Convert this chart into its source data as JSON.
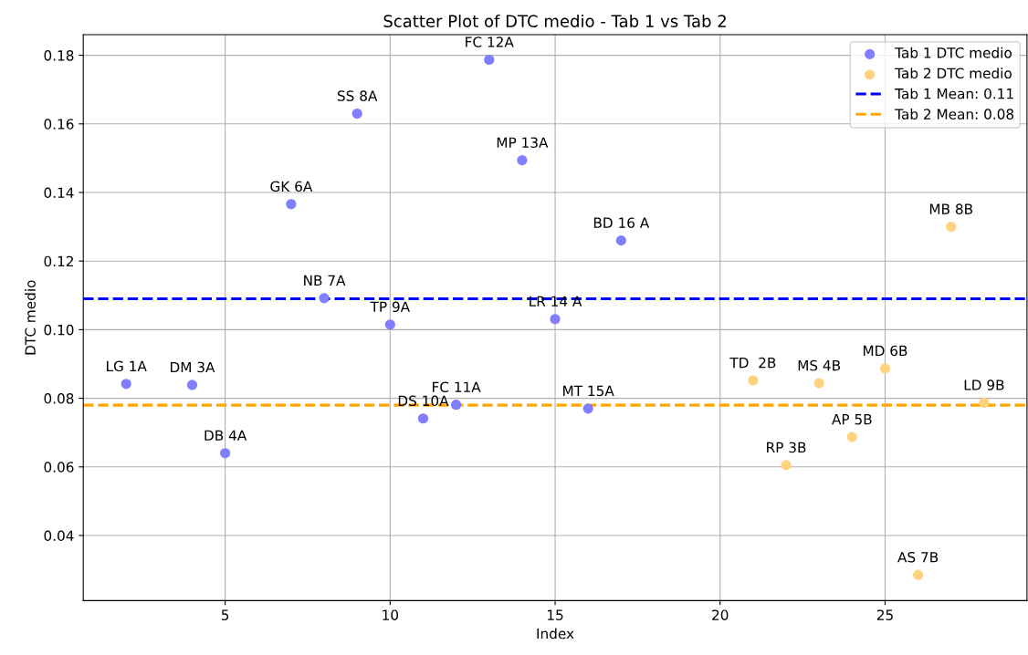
{
  "chart_data": {
    "type": "scatter",
    "title": "Scatter Plot of DTC medio - Tab 1 vs Tab 2",
    "xlabel": "Index",
    "ylabel": "DTC medio",
    "series": [
      {
        "name": "Tab 1 DTC medio",
        "color": "#7f7fff",
        "x": [
          2,
          4,
          5,
          7,
          8,
          9,
          10,
          11,
          12,
          13,
          14,
          15,
          16,
          17
        ],
        "values": [
          0.0842,
          0.0839,
          0.064,
          0.1366,
          0.1092,
          0.163,
          0.1015,
          0.0741,
          0.0781,
          0.1787,
          0.1494,
          0.1031,
          0.077,
          0.126
        ]
      },
      {
        "name": "Tab 2 DTC medio",
        "color": "#ffd27f",
        "x": [
          21,
          22,
          23,
          24,
          25,
          26,
          27,
          28
        ],
        "values": [
          0.0852,
          0.0605,
          0.0844,
          0.0687,
          0.0887,
          0.0285,
          0.13,
          0.0787
        ]
      }
    ],
    "ref_lines": [
      {
        "axis": "y",
        "value": 0.109,
        "label": "Tab 1 Mean: 0.11",
        "color": "#0000ff",
        "line_style": "dashed"
      },
      {
        "axis": "y",
        "value": 0.078,
        "label": "Tab 2 Mean: 0.08",
        "color": "#ffa500",
        "line_style": "dashed"
      }
    ],
    "annotations": [
      {
        "text": "LG 1A",
        "x": 2,
        "y": 0.0842
      },
      {
        "text": "DM 3A",
        "x": 4,
        "y": 0.0839
      },
      {
        "text": "DB 4A",
        "x": 5,
        "y": 0.064
      },
      {
        "text": "GK 6A",
        "x": 7,
        "y": 0.1366
      },
      {
        "text": "NB 7A",
        "x": 8,
        "y": 0.1092
      },
      {
        "text": "SS 8A",
        "x": 9,
        "y": 0.163
      },
      {
        "text": "TP 9A",
        "x": 10,
        "y": 0.1015
      },
      {
        "text": "DS 10A",
        "x": 11,
        "y": 0.0741
      },
      {
        "text": "FC 11A",
        "x": 12,
        "y": 0.0781
      },
      {
        "text": "FC 12A",
        "x": 13,
        "y": 0.1787
      },
      {
        "text": "MP 13A",
        "x": 14,
        "y": 0.1494
      },
      {
        "text": "LR 14 A",
        "x": 15,
        "y": 0.1031
      },
      {
        "text": "MT 15A",
        "x": 16,
        "y": 0.077
      },
      {
        "text": "BD 16 A",
        "x": 17,
        "y": 0.126
      },
      {
        "text": "TD  2B",
        "x": 21,
        "y": 0.0852
      },
      {
        "text": "RP 3B",
        "x": 22,
        "y": 0.0605
      },
      {
        "text": "MS 4B",
        "x": 23,
        "y": 0.0844
      },
      {
        "text": "AP 5B",
        "x": 24,
        "y": 0.0687
      },
      {
        "text": "MD 6B",
        "x": 25,
        "y": 0.0887
      },
      {
        "text": "AS 7B",
        "x": 26,
        "y": 0.0285
      },
      {
        "text": "MB 8B",
        "x": 27,
        "y": 0.13
      },
      {
        "text": "LD 9B",
        "x": 28,
        "y": 0.0787
      }
    ],
    "xlim": [
      0.7,
      29.3
    ],
    "ylim": [
      0.021,
      0.186
    ],
    "xticks": [
      5,
      10,
      15,
      20,
      25
    ],
    "yticks": [
      {
        "value": 0.04,
        "label": "0.04"
      },
      {
        "value": 0.06,
        "label": "0.06"
      },
      {
        "value": 0.08,
        "label": "0.08"
      },
      {
        "value": 0.1,
        "label": "0.10"
      },
      {
        "value": 0.12,
        "label": "0.12"
      },
      {
        "value": 0.14,
        "label": "0.14"
      },
      {
        "value": 0.16,
        "label": "0.16"
      },
      {
        "value": 0.18,
        "label": "0.18"
      }
    ],
    "grid": true,
    "legend": "upper right",
    "marker": "circle"
  }
}
